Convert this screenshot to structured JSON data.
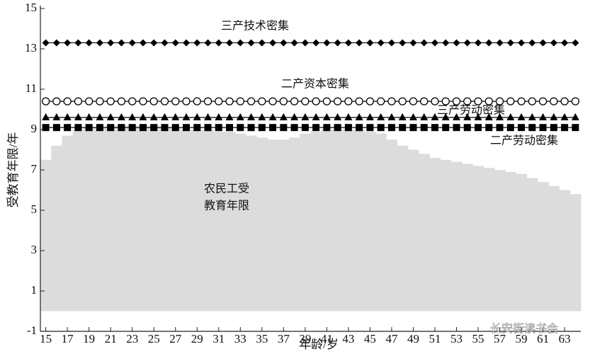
{
  "chart_data": {
    "type": "line",
    "xlabel": "年龄/岁",
    "ylabel": "受教育年限/年",
    "x": [
      15,
      16,
      17,
      18,
      19,
      20,
      21,
      22,
      23,
      24,
      25,
      26,
      27,
      28,
      29,
      30,
      31,
      32,
      33,
      34,
      35,
      36,
      37,
      38,
      39,
      40,
      41,
      42,
      43,
      44,
      45,
      46,
      47,
      48,
      49,
      50,
      51,
      52,
      53,
      54,
      55,
      56,
      57,
      58,
      59,
      60,
      61,
      62,
      63,
      64
    ],
    "area": {
      "color": "#dcdcdc",
      "values": [
        7.5,
        8.2,
        8.7,
        9.0,
        9.1,
        9.1,
        9.2,
        9.2,
        9.2,
        9.2,
        9.2,
        9.1,
        9.1,
        9.0,
        9.0,
        9.0,
        8.9,
        8.9,
        8.8,
        8.7,
        8.6,
        8.5,
        8.5,
        8.6,
        8.8,
        8.9,
        9.0,
        9.0,
        9.0,
        9.0,
        8.9,
        8.8,
        8.5,
        8.2,
        8.0,
        7.8,
        7.6,
        7.5,
        7.4,
        7.3,
        7.2,
        7.1,
        7.0,
        6.9,
        6.8,
        6.6,
        6.4,
        6.2,
        6.0,
        5.8
      ],
      "annotation": [
        "农民工受",
        "教育年限"
      ]
    },
    "series": [
      {
        "name": "三产技术密集",
        "color": "#000000",
        "marker": "diamond",
        "values": [
          13.3,
          13.3,
          13.3,
          13.3,
          13.3,
          13.3,
          13.3,
          13.3,
          13.3,
          13.3,
          13.3,
          13.3,
          13.3,
          13.3,
          13.3,
          13.3,
          13.3,
          13.3,
          13.3,
          13.3,
          13.3,
          13.3,
          13.3,
          13.3,
          13.3,
          13.3,
          13.3,
          13.3,
          13.3,
          13.3,
          13.3,
          13.3,
          13.3,
          13.3,
          13.3,
          13.3,
          13.3,
          13.3,
          13.3,
          13.3,
          13.3,
          13.3,
          13.3,
          13.3,
          13.3,
          13.3,
          13.3,
          13.3,
          13.3,
          13.3
        ]
      },
      {
        "name": "二产资本密集",
        "color": "#000000",
        "marker": "circle",
        "values": [
          10.4,
          10.4,
          10.4,
          10.4,
          10.4,
          10.4,
          10.4,
          10.4,
          10.4,
          10.4,
          10.4,
          10.4,
          10.4,
          10.4,
          10.4,
          10.4,
          10.4,
          10.4,
          10.4,
          10.4,
          10.4,
          10.4,
          10.4,
          10.4,
          10.4,
          10.4,
          10.4,
          10.4,
          10.4,
          10.4,
          10.4,
          10.4,
          10.4,
          10.4,
          10.4,
          10.4,
          10.4,
          10.4,
          10.4,
          10.4,
          10.4,
          10.4,
          10.4,
          10.4,
          10.4,
          10.4,
          10.4,
          10.4,
          10.4,
          10.4
        ]
      },
      {
        "name": "三产劳动密集",
        "color": "#000000",
        "marker": "triangle",
        "values": [
          9.6,
          9.6,
          9.6,
          9.6,
          9.6,
          9.6,
          9.6,
          9.6,
          9.6,
          9.6,
          9.6,
          9.6,
          9.6,
          9.6,
          9.6,
          9.6,
          9.6,
          9.6,
          9.6,
          9.6,
          9.6,
          9.6,
          9.6,
          9.6,
          9.6,
          9.6,
          9.6,
          9.6,
          9.6,
          9.6,
          9.6,
          9.6,
          9.6,
          9.6,
          9.6,
          9.6,
          9.6,
          9.6,
          9.6,
          9.6,
          9.6,
          9.6,
          9.6,
          9.6,
          9.6,
          9.6,
          9.6,
          9.6,
          9.6,
          9.6
        ]
      },
      {
        "name": "二产劳动密集",
        "color": "#000000",
        "marker": "square",
        "values": [
          9.1,
          9.1,
          9.1,
          9.1,
          9.1,
          9.1,
          9.1,
          9.1,
          9.1,
          9.1,
          9.1,
          9.1,
          9.1,
          9.1,
          9.1,
          9.1,
          9.1,
          9.1,
          9.1,
          9.1,
          9.1,
          9.1,
          9.1,
          9.1,
          9.1,
          9.1,
          9.1,
          9.1,
          9.1,
          9.1,
          9.1,
          9.1,
          9.1,
          9.1,
          9.1,
          9.1,
          9.1,
          9.1,
          9.1,
          9.1,
          9.1,
          9.1,
          9.1,
          9.1,
          9.1,
          9.1,
          9.1,
          9.1,
          9.1,
          9.1
        ]
      }
    ],
    "xlim": [
      14.5,
      64.5
    ],
    "xticks": [
      15,
      17,
      19,
      21,
      23,
      25,
      27,
      29,
      31,
      33,
      35,
      37,
      39,
      41,
      43,
      45,
      47,
      49,
      51,
      53,
      55,
      57,
      59,
      61,
      63
    ],
    "ylim": [
      -1,
      15
    ],
    "yticks": [
      -1,
      1,
      3,
      5,
      7,
      9,
      11,
      13,
      15
    ],
    "watermark": "长安街读书会"
  }
}
